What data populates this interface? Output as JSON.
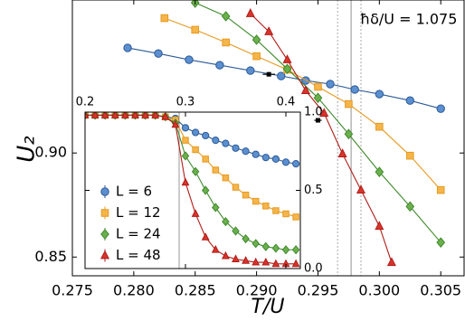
{
  "chart_data": [
    {
      "type": "line",
      "x_label": "T/U",
      "y_label": "U₂",
      "annotation": "ħδ/U = 1.075",
      "xlim": [
        0.275,
        0.3069
      ],
      "ylim": [
        0.841,
        0.9735
      ],
      "xticks": [
        0.275,
        {
          "value": 0.28,
          "label": "0.280"
        },
        0.285,
        {
          "value": 0.29,
          "label": "0.290"
        },
        0.295,
        {
          "value": 0.3,
          "label": "0.300"
        },
        0.305
      ],
      "yticks": [
        0.85,
        {
          "value": 0.9,
          "label": "0.90"
        }
      ],
      "vlines": [
        {
          "x": 0.2966,
          "style": "dotted"
        },
        {
          "x": 0.2977,
          "style": "solid"
        },
        {
          "x": 0.2985,
          "style": "dotted"
        }
      ],
      "crossings": {
        "x": [
          0.291,
          0.295
        ],
        "values": [
          0.9378,
          0.9157
        ],
        "xerr": [
          0.0005,
          0.0003
        ]
      },
      "series": [
        {
          "name": "L = 6",
          "color": "#5b8fd0",
          "edge": "#2c5a96",
          "marker": "circle",
          "x": [
            0.2795,
            0.282,
            0.2845,
            0.287,
            0.2895,
            0.292,
            0.294,
            0.296,
            0.298,
            0.3,
            0.3025,
            0.305
          ],
          "values": [
            0.9505,
            0.9478,
            0.9448,
            0.9422,
            0.9396,
            0.937,
            0.9348,
            0.9331,
            0.9305,
            0.9283,
            0.9252,
            0.9213
          ]
        },
        {
          "name": "L = 12",
          "color": "#f5b54a",
          "edge": "#e69a20",
          "marker": "square",
          "x": [
            0.2825,
            0.285,
            0.2875,
            0.29,
            0.2925,
            0.295,
            0.2975,
            0.3,
            0.3025,
            0.305
          ],
          "values": [
            0.9648,
            0.9592,
            0.9531,
            0.9465,
            0.94,
            0.9318,
            0.9235,
            0.9126,
            0.8987,
            0.8822
          ]
        },
        {
          "name": "L = 24",
          "color": "#6cb04e",
          "edge": "#3f8a2b",
          "marker": "diamond",
          "x": [
            0.285,
            0.2875,
            0.29,
            0.2925,
            0.295,
            0.2975,
            0.3,
            0.3025,
            0.305
          ],
          "values": [
            0.9722,
            0.9657,
            0.9544,
            0.9404,
            0.9265,
            0.9091,
            0.8909,
            0.8743,
            0.857
          ]
        },
        {
          "name": "L = 48",
          "color": "#d8342c",
          "edge": "#b01d18",
          "marker": "triangle",
          "x": [
            0.2895,
            0.291,
            0.2925,
            0.294,
            0.2955,
            0.297,
            0.2985,
            0.3,
            0.301
          ],
          "values": [
            0.967,
            0.9583,
            0.9448,
            0.93,
            0.9191,
            0.8996,
            0.8822,
            0.8648,
            0.8474
          ]
        }
      ]
    },
    {
      "type": "line",
      "xlim": [
        0.2,
        0.4144
      ],
      "ylim": [
        0,
        1
      ],
      "xticks": [
        0.2,
        0.3,
        0.4
      ],
      "yticks": [
        {
          "value": 0,
          "label": "0.0"
        },
        0.5,
        {
          "value": 1,
          "label": "1.0"
        }
      ],
      "vline": 0.2937,
      "x": [
        0.2,
        0.21,
        0.22,
        0.23,
        0.24,
        0.25,
        0.26,
        0.27,
        0.28,
        0.29,
        0.3,
        0.31,
        0.32,
        0.33,
        0.34,
        0.35,
        0.36,
        0.37,
        0.38,
        0.39,
        0.4,
        0.41
      ],
      "series": [
        {
          "name": "L = 6",
          "color": "#5b8fd0",
          "edge": "#2c5a96",
          "marker": "circle",
          "values": [
            0.98,
            0.98,
            0.98,
            0.98,
            0.98,
            0.98,
            0.98,
            0.98,
            0.97,
            0.96,
            0.9,
            0.87,
            0.85,
            0.82,
            0.8,
            0.77,
            0.75,
            0.73,
            0.71,
            0.7,
            0.68,
            0.67
          ]
        },
        {
          "name": "L = 12",
          "color": "#f5b54a",
          "edge": "#e69a20",
          "marker": "square",
          "values": [
            0.98,
            0.98,
            0.98,
            0.98,
            0.98,
            0.98,
            0.98,
            0.98,
            0.97,
            0.95,
            0.82,
            0.76,
            0.7,
            0.63,
            0.58,
            0.52,
            0.47,
            0.43,
            0.4,
            0.37,
            0.35,
            0.33
          ]
        },
        {
          "name": "L = 24",
          "color": "#6cb04e",
          "edge": "#3f8a2b",
          "marker": "diamond",
          "values": [
            0.98,
            0.98,
            0.98,
            0.98,
            0.98,
            0.98,
            0.98,
            0.98,
            0.97,
            0.93,
            0.72,
            0.62,
            0.5,
            0.39,
            0.3,
            0.24,
            0.19,
            0.16,
            0.14,
            0.13,
            0.12,
            0.12
          ]
        },
        {
          "name": "L = 48",
          "color": "#d8342c",
          "edge": "#b01d18",
          "marker": "triangle",
          "values": [
            0.98,
            0.98,
            0.98,
            0.98,
            0.98,
            0.98,
            0.98,
            0.98,
            0.97,
            0.92,
            0.55,
            0.35,
            0.2,
            0.12,
            0.08,
            0.06,
            0.05,
            0.04,
            0.04,
            0.03,
            0.03,
            0.03
          ]
        }
      ]
    }
  ]
}
